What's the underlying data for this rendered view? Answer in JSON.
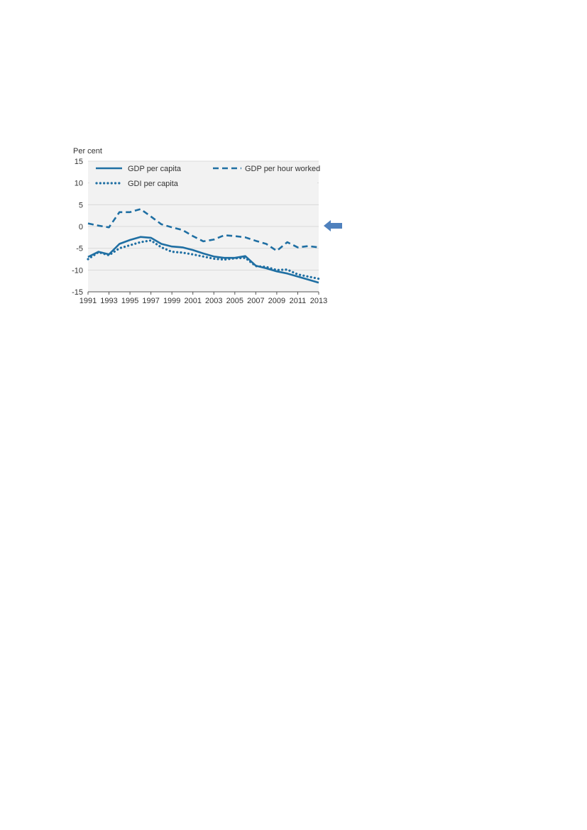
{
  "chart_data": {
    "type": "line",
    "ylabel": "Per cent",
    "ylim": [
      -15,
      15
    ],
    "yticks": [
      "15",
      "10",
      "5",
      "0",
      "-5",
      "-10",
      "-15"
    ],
    "xlim": [
      1991,
      2013
    ],
    "xticks": [
      "1991",
      "1993",
      "1995",
      "1997",
      "1999",
      "2001",
      "2003",
      "2005",
      "2007",
      "2009",
      "2011",
      "2013"
    ],
    "grid": true,
    "legend_placement": "top",
    "colors": {
      "series": "#1f6fa3",
      "grid": "#d9d9d9",
      "background": "#f2f2f2",
      "arrow": "#4f81bd"
    },
    "x": [
      1991,
      1992,
      1993,
      1994,
      1995,
      1996,
      1997,
      1998,
      1999,
      2000,
      2001,
      2002,
      2003,
      2004,
      2005,
      2006,
      2007,
      2008,
      2009,
      2010,
      2011,
      2012,
      2013
    ],
    "series": [
      {
        "name": "GDP per capita",
        "style": "solid",
        "values": [
          -7,
          -5.8,
          -6.4,
          -4.0,
          -3.1,
          -2.4,
          -2.6,
          -4.0,
          -4.6,
          -4.8,
          -5.4,
          -6.2,
          -6.9,
          -7.2,
          -7.2,
          -6.8,
          -9.0,
          -9.6,
          -10.3,
          -10.8,
          -11.5,
          -12.2,
          -12.9
        ]
      },
      {
        "name": "GDP per hour worked",
        "style": "dashed",
        "values": [
          0.7,
          0.2,
          -0.2,
          3.3,
          3.3,
          4.0,
          2.3,
          0.5,
          -0.2,
          -0.8,
          -2.2,
          -3.4,
          -3.0,
          -2.0,
          -2.2,
          -2.5,
          -3.3,
          -4.0,
          -5.6,
          -3.6,
          -4.8,
          -4.5,
          -4.8
        ]
      },
      {
        "name": "GDI per capita",
        "style": "dotted",
        "values": [
          -7.5,
          -5.9,
          -6.6,
          -5.0,
          -4.3,
          -3.6,
          -3.2,
          -4.8,
          -5.8,
          -6.0,
          -6.4,
          -6.9,
          -7.4,
          -7.6,
          -7.3,
          -7.2,
          -9.1,
          -9.3,
          -10.0,
          -9.9,
          -11.0,
          -11.5,
          -12.0
        ]
      }
    ]
  }
}
